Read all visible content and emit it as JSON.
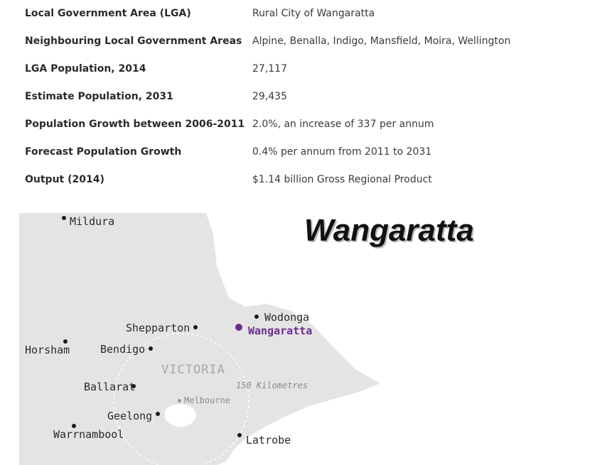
{
  "info_table": {
    "rows": [
      {
        "label": "Local Government Area (LGA)",
        "value": "Rural City of Wangaratta"
      },
      {
        "label": "Neighbouring Local Government Areas",
        "value": "Alpine, Benalla, Indigo, Mansfield, Moira, Wellington"
      },
      {
        "label": "LGA Population, 2014",
        "value": "27,117"
      },
      {
        "label": "Estimate Population, 2031",
        "value": "29,435"
      },
      {
        "label": "Population Growth between 2006-2011",
        "value": "2.0%, an increase of 337 per annum"
      },
      {
        "label": "Forecast Population Growth",
        "value": "0.4% per annum from 2011 to 2031"
      },
      {
        "label": "Output (2014)",
        "value": "$1.14 billion Gross Regional Product"
      }
    ]
  },
  "map": {
    "title": "Wangaratta",
    "region_label": "VICTORIA",
    "radius_label": "150 Kilometres",
    "highlight_color": "#6b2d8c",
    "places": {
      "mildura": "Mildura",
      "wodonga": "Wodonga",
      "wangaratta": "Wangaratta",
      "shepparton": "Shepparton",
      "horsham": "Horsham",
      "bendigo": "Bendigo",
      "ballarat": "Ballarat",
      "melbourne": "Melbourne",
      "geelong": "Geelong",
      "warrnambool": "Warrnambool",
      "latrobe": "Latrobe"
    }
  }
}
